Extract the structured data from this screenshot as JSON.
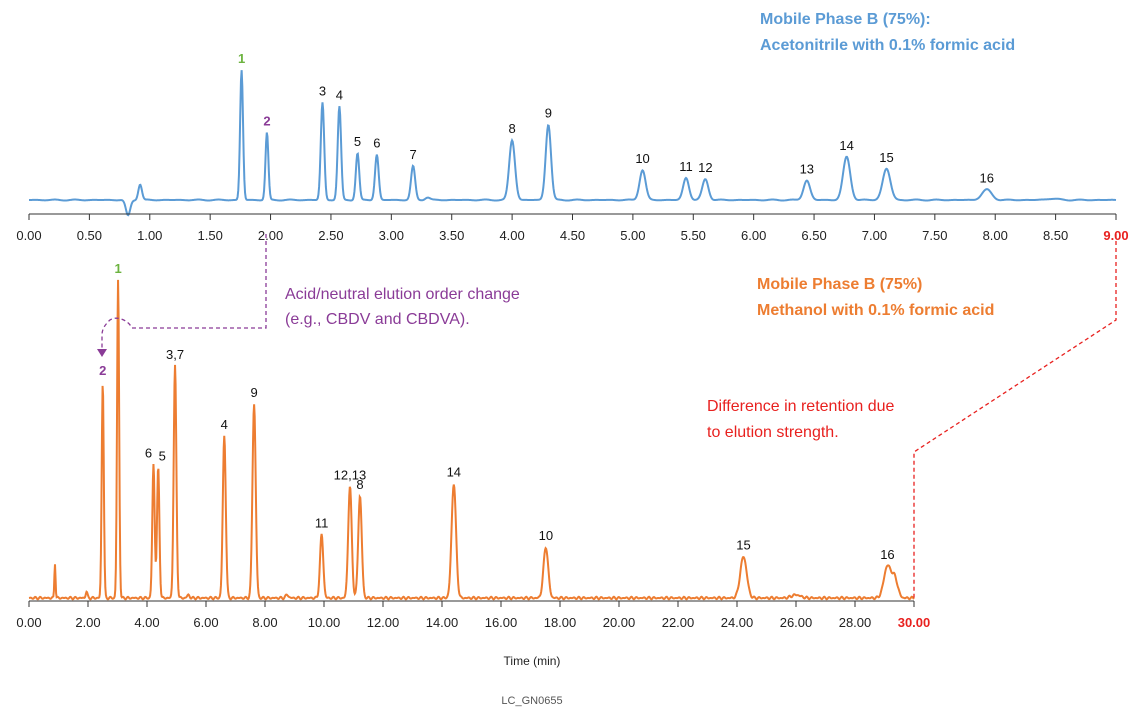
{
  "chart_data": [
    {
      "type": "line",
      "title": "",
      "series_color": "#5b9bd5",
      "phase_label": [
        "Mobile Phase B (75%):",
        "Acetonitrile with 0.1% formic acid"
      ],
      "xlabel": "",
      "xlim": [
        0,
        9
      ],
      "x_ticks": [
        "0.00",
        "0.50",
        "1.00",
        "1.50",
        "2.00",
        "2.50",
        "3.00",
        "3.50",
        "4.00",
        "4.50",
        "5.00",
        "5.50",
        "6.00",
        "6.50",
        "7.00",
        "7.50",
        "8.00",
        "8.50",
        "9.00"
      ],
      "x_tick_values": [
        0,
        0.5,
        1,
        1.5,
        2,
        2.5,
        3,
        3.5,
        4,
        4.5,
        5,
        5.5,
        6,
        6.5,
        7,
        7.5,
        8,
        8.5,
        9
      ],
      "highlight_tick": "9.00",
      "peaks": [
        {
          "label": "1",
          "x": 1.76,
          "height": 1.0,
          "width": 0.012,
          "color": "green"
        },
        {
          "label": "2",
          "x": 1.97,
          "height": 0.52,
          "width": 0.012,
          "color": "purple"
        },
        {
          "label": "3",
          "x": 2.43,
          "height": 0.75,
          "width": 0.014
        },
        {
          "label": "4",
          "x": 2.57,
          "height": 0.72,
          "width": 0.014
        },
        {
          "label": "5",
          "x": 2.72,
          "height": 0.36,
          "width": 0.014
        },
        {
          "label": "6",
          "x": 2.88,
          "height": 0.35,
          "width": 0.015
        },
        {
          "label": "7",
          "x": 3.18,
          "height": 0.26,
          "width": 0.017
        },
        {
          "label": "8",
          "x": 4.0,
          "height": 0.46,
          "width": 0.024
        },
        {
          "label": "9",
          "x": 4.3,
          "height": 0.58,
          "width": 0.022
        },
        {
          "label": "10",
          "x": 5.08,
          "height": 0.23,
          "width": 0.025
        },
        {
          "label": "11",
          "x": 5.44,
          "height": 0.17,
          "width": 0.024
        },
        {
          "label": "12",
          "x": 5.6,
          "height": 0.16,
          "width": 0.025
        },
        {
          "label": "13",
          "x": 6.44,
          "height": 0.15,
          "width": 0.027
        },
        {
          "label": "14",
          "x": 6.77,
          "height": 0.33,
          "width": 0.03
        },
        {
          "label": "15",
          "x": 7.1,
          "height": 0.24,
          "width": 0.032
        },
        {
          "label": "16",
          "x": 7.93,
          "height": 0.08,
          "width": 0.04
        }
      ],
      "minor_peaks": [
        {
          "x": 0.92,
          "height": 0.12,
          "width": 0.015
        },
        {
          "x": 3.3,
          "height": 0.02,
          "width": 0.02
        },
        {
          "x": 8.47,
          "height": 0.01,
          "width": 0.05
        }
      ],
      "dip": {
        "x": 0.82,
        "depth": 0.12
      }
    },
    {
      "type": "line",
      "title": "",
      "series_color": "#ed7d31",
      "phase_label": [
        "Mobile Phase B (75%)",
        "Methanol with 0.1% formic acid"
      ],
      "xlabel": "Time (min)",
      "xlim": [
        0,
        30
      ],
      "x_ticks": [
        "0.00",
        "2.00",
        "4.00",
        "6.00",
        "8.00",
        "10.00",
        "12.00",
        "14.00",
        "16.00",
        "18.00",
        "20.00",
        "22.00",
        "24.00",
        "26.00",
        "28.00",
        "30.00"
      ],
      "x_tick_values": [
        0,
        2,
        4,
        6,
        8,
        10,
        12,
        14,
        16,
        18,
        20,
        22,
        24,
        26,
        28,
        30
      ],
      "highlight_tick": "30.00",
      "peaks": [
        {
          "label": "2",
          "x": 2.5,
          "height": 0.68,
          "width": 0.035,
          "color": "purple"
        },
        {
          "label": "1",
          "x": 3.02,
          "height": 1.0,
          "width": 0.035,
          "color": "green"
        },
        {
          "label": "6",
          "x": 4.22,
          "height": 0.42,
          "width": 0.04
        },
        {
          "label": "5",
          "x": 4.38,
          "height": 0.41,
          "width": 0.04
        },
        {
          "label": "3,7",
          "x": 4.95,
          "height": 0.73,
          "width": 0.045
        },
        {
          "label": "4",
          "x": 6.62,
          "height": 0.51,
          "width": 0.05
        },
        {
          "label": "9",
          "x": 7.63,
          "height": 0.61,
          "width": 0.055
        },
        {
          "label": "11",
          "x": 9.92,
          "height": 0.2,
          "width": 0.055
        },
        {
          "label": "12,13",
          "x": 10.88,
          "height": 0.35,
          "width": 0.06
        },
        {
          "label": "8",
          "x": 11.22,
          "height": 0.32,
          "width": 0.06
        },
        {
          "label": "14",
          "x": 14.4,
          "height": 0.36,
          "width": 0.075
        },
        {
          "label": "10",
          "x": 17.52,
          "height": 0.16,
          "width": 0.08
        },
        {
          "label": "15",
          "x": 24.22,
          "height": 0.13,
          "width": 0.11
        },
        {
          "label": "16",
          "x": 29.1,
          "height": 0.1,
          "width": 0.12
        }
      ],
      "minor_peaks": [
        {
          "x": 0.88,
          "height": 0.11,
          "width": 0.02
        },
        {
          "x": 1.95,
          "height": 0.02,
          "width": 0.03
        },
        {
          "x": 5.4,
          "height": 0.01,
          "width": 0.04
        },
        {
          "x": 8.75,
          "height": 0.01,
          "width": 0.05
        },
        {
          "x": 26.0,
          "height": 0.01,
          "width": 0.15
        },
        {
          "x": 29.35,
          "height": 0.06,
          "width": 0.1
        }
      ]
    }
  ],
  "annotations": {
    "elution_order_change": [
      "Acid/neutral elution order change",
      "(e.g., CBDV and CBDVA)."
    ],
    "retention_difference": [
      "Difference in retention due",
      "to elution strength."
    ],
    "colors": {
      "purple": "#8a3b97",
      "red": "#e8211f",
      "green": "#6cb33f"
    }
  },
  "footer_code": "LC_GN0655"
}
